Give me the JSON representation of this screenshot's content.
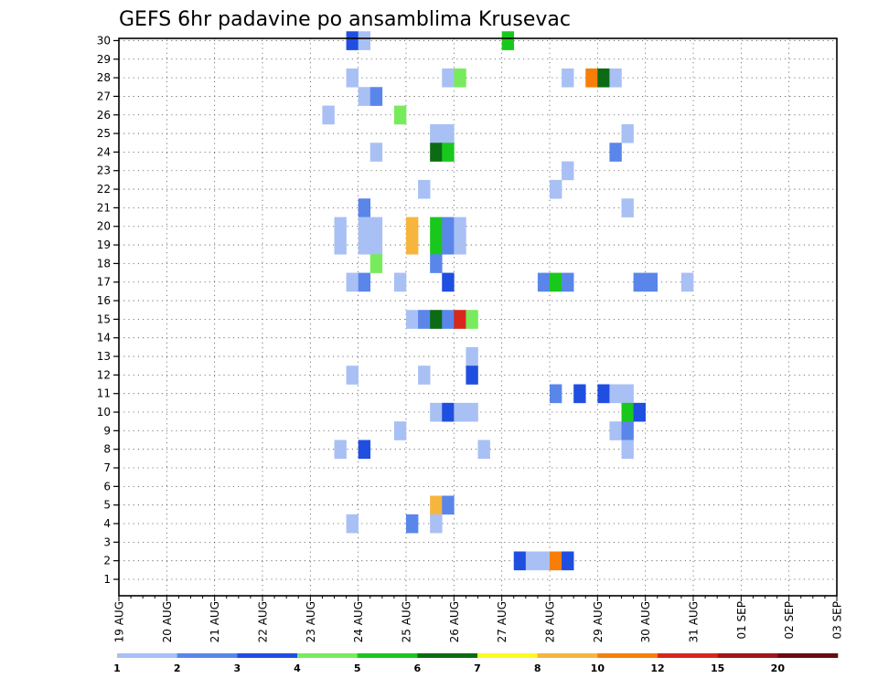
{
  "chart_data": {
    "type": "heatmap",
    "title": "GEFS 6hr padavine po ansamblima Krusevac",
    "xlabel": "",
    "ylabel": "",
    "x_tick_labels": [
      "19 AUG",
      "20 AUG",
      "21 AUG",
      "22 AUG",
      "23 AUG",
      "24 AUG",
      "25 AUG",
      "26 AUG",
      "27 AUG",
      "28 AUG",
      "29 AUG",
      "30 AUG",
      "31 AUG",
      "01 SEP",
      "02 SEP",
      "03 SEP"
    ],
    "y_tick_labels": [
      "1",
      "2",
      "3",
      "4",
      "5",
      "6",
      "7",
      "8",
      "9",
      "10",
      "11",
      "12",
      "13",
      "14",
      "15",
      "16",
      "17",
      "18",
      "19",
      "20",
      "21",
      "22",
      "23",
      "24",
      "25",
      "26",
      "27",
      "28",
      "29",
      "30"
    ],
    "x_step_unit": "6hr",
    "ylim": [
      1,
      30
    ],
    "grid": true,
    "legend": {
      "placement": "bottom",
      "labels": [
        "1",
        "2",
        "3",
        "4",
        "5",
        "6",
        "7",
        "8",
        "10",
        "12",
        "15",
        "20"
      ],
      "colors": [
        "#a9c0f5",
        "#5a86ea",
        "#1f4fe0",
        "#78eb5c",
        "#19c81c",
        "#0c6b14",
        "#fefa1e",
        "#f7b53e",
        "#f77e08",
        "#d8271b",
        "#a3151a",
        "#6a0b10"
      ]
    },
    "cells": [
      {
        "t": 19,
        "member": 30,
        "level": 3
      },
      {
        "t": 20,
        "member": 30,
        "level": 1
      },
      {
        "t": 32,
        "member": 30,
        "level": 5
      },
      {
        "t": 19,
        "member": 28,
        "level": 1
      },
      {
        "t": 27,
        "member": 28,
        "level": 1
      },
      {
        "t": 28,
        "member": 28,
        "level": 4
      },
      {
        "t": 37,
        "member": 28,
        "level": 1
      },
      {
        "t": 39,
        "member": 28,
        "level": 10
      },
      {
        "t": 40,
        "member": 28,
        "level": 6
      },
      {
        "t": 41,
        "member": 28,
        "level": 1
      },
      {
        "t": 20,
        "member": 27,
        "level": 1
      },
      {
        "t": 21,
        "member": 27,
        "level": 2
      },
      {
        "t": 17,
        "member": 26,
        "level": 1
      },
      {
        "t": 23,
        "member": 26,
        "level": 4
      },
      {
        "t": 26,
        "member": 25,
        "level": 1
      },
      {
        "t": 27,
        "member": 25,
        "level": 1
      },
      {
        "t": 42,
        "member": 25,
        "level": 1
      },
      {
        "t": 21,
        "member": 24,
        "level": 1
      },
      {
        "t": 26,
        "member": 24,
        "level": 6
      },
      {
        "t": 27,
        "member": 24,
        "level": 5
      },
      {
        "t": 41,
        "member": 24,
        "level": 2
      },
      {
        "t": 37,
        "member": 23,
        "level": 1
      },
      {
        "t": 25,
        "member": 22,
        "level": 1
      },
      {
        "t": 36,
        "member": 22,
        "level": 1
      },
      {
        "t": 20,
        "member": 21,
        "level": 2
      },
      {
        "t": 42,
        "member": 21,
        "level": 1
      },
      {
        "t": 18,
        "member": 20,
        "level": 1
      },
      {
        "t": 20,
        "member": 20,
        "level": 1
      },
      {
        "t": 21,
        "member": 20,
        "level": 1
      },
      {
        "t": 24,
        "member": 20,
        "level": 8
      },
      {
        "t": 26,
        "member": 20,
        "level": 5
      },
      {
        "t": 27,
        "member": 20,
        "level": 2
      },
      {
        "t": 28,
        "member": 20,
        "level": 1
      },
      {
        "t": 18,
        "member": 19,
        "level": 1
      },
      {
        "t": 20,
        "member": 19,
        "level": 1
      },
      {
        "t": 21,
        "member": 19,
        "level": 1
      },
      {
        "t": 24,
        "member": 19,
        "level": 8
      },
      {
        "t": 26,
        "member": 19,
        "level": 5
      },
      {
        "t": 27,
        "member": 19,
        "level": 2
      },
      {
        "t": 28,
        "member": 19,
        "level": 1
      },
      {
        "t": 21,
        "member": 18,
        "level": 4
      },
      {
        "t": 26,
        "member": 18,
        "level": 2
      },
      {
        "t": 19,
        "member": 17,
        "level": 1
      },
      {
        "t": 20,
        "member": 17,
        "level": 2
      },
      {
        "t": 23,
        "member": 17,
        "level": 1
      },
      {
        "t": 27,
        "member": 17,
        "level": 3
      },
      {
        "t": 35,
        "member": 17,
        "level": 2
      },
      {
        "t": 36,
        "member": 17,
        "level": 5
      },
      {
        "t": 37,
        "member": 17,
        "level": 2
      },
      {
        "t": 43,
        "member": 17,
        "level": 2
      },
      {
        "t": 44,
        "member": 17,
        "level": 2
      },
      {
        "t": 47,
        "member": 17,
        "level": 1
      },
      {
        "t": 24,
        "member": 15,
        "level": 1
      },
      {
        "t": 25,
        "member": 15,
        "level": 2
      },
      {
        "t": 26,
        "member": 15,
        "level": 6
      },
      {
        "t": 27,
        "member": 15,
        "level": 2
      },
      {
        "t": 28,
        "member": 15,
        "level": 12
      },
      {
        "t": 29,
        "member": 15,
        "level": 4
      },
      {
        "t": 29,
        "member": 13,
        "level": 1
      },
      {
        "t": 19,
        "member": 12,
        "level": 1
      },
      {
        "t": 25,
        "member": 12,
        "level": 1
      },
      {
        "t": 29,
        "member": 12,
        "level": 3
      },
      {
        "t": 36,
        "member": 11,
        "level": 2
      },
      {
        "t": 38,
        "member": 11,
        "level": 3
      },
      {
        "t": 40,
        "member": 11,
        "level": 3
      },
      {
        "t": 41,
        "member": 11,
        "level": 1
      },
      {
        "t": 42,
        "member": 11,
        "level": 1
      },
      {
        "t": 26,
        "member": 10,
        "level": 1
      },
      {
        "t": 27,
        "member": 10,
        "level": 3
      },
      {
        "t": 28,
        "member": 10,
        "level": 1
      },
      {
        "t": 29,
        "member": 10,
        "level": 1
      },
      {
        "t": 42,
        "member": 10,
        "level": 5
      },
      {
        "t": 43,
        "member": 10,
        "level": 3
      },
      {
        "t": 23,
        "member": 9,
        "level": 1
      },
      {
        "t": 41,
        "member": 9,
        "level": 1
      },
      {
        "t": 42,
        "member": 9,
        "level": 2
      },
      {
        "t": 18,
        "member": 8,
        "level": 1
      },
      {
        "t": 20,
        "member": 8,
        "level": 3
      },
      {
        "t": 30,
        "member": 8,
        "level": 1
      },
      {
        "t": 42,
        "member": 8,
        "level": 1
      },
      {
        "t": 26,
        "member": 5,
        "level": 8
      },
      {
        "t": 27,
        "member": 5,
        "level": 2
      },
      {
        "t": 19,
        "member": 4,
        "level": 1
      },
      {
        "t": 24,
        "member": 4,
        "level": 2
      },
      {
        "t": 26,
        "member": 4,
        "level": 1
      },
      {
        "t": 33,
        "member": 2,
        "level": 3
      },
      {
        "t": 34,
        "member": 2,
        "level": 1
      },
      {
        "t": 35,
        "member": 2,
        "level": 1
      },
      {
        "t": 36,
        "member": 2,
        "level": 10
      },
      {
        "t": 37,
        "member": 2,
        "level": 3
      }
    ]
  }
}
